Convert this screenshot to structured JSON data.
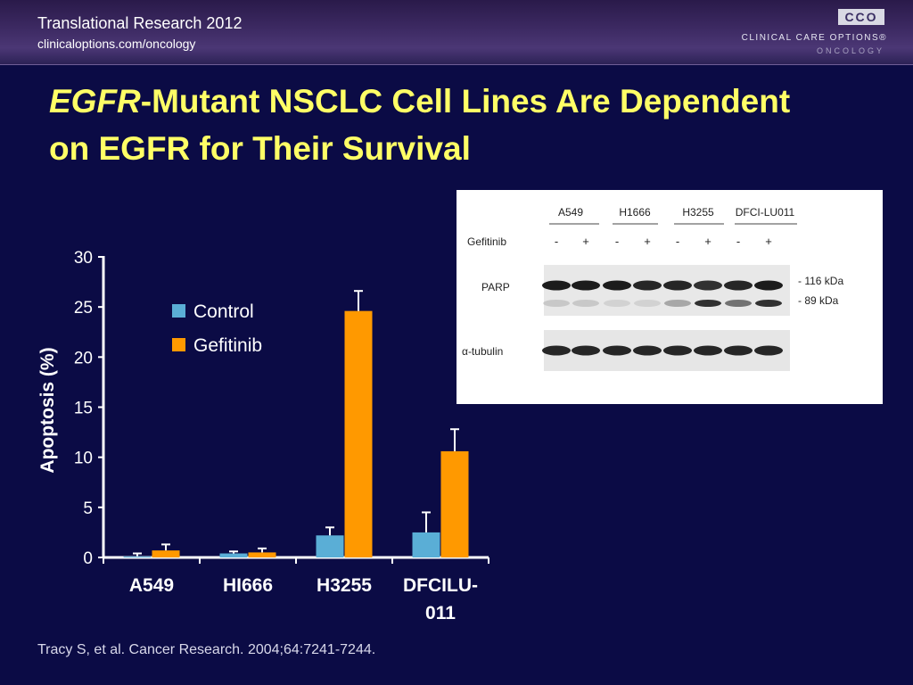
{
  "header": {
    "title": "Translational Research 2012",
    "url": "clinicaloptions.com/oncology",
    "logo_mark": "CCO",
    "logo_line1": "CLINICAL CARE OPTIONS®",
    "logo_line2": "ONCOLOGY"
  },
  "slide": {
    "title_italic": "EGFR",
    "title_rest": "-Mutant NSCLC Cell Lines Are Dependent on EGFR for Their Survival"
  },
  "blot": {
    "cell_lines": [
      "A549",
      "H1666",
      "H3255",
      "DFCI-LU011"
    ],
    "treatment_label": "Gefitinib",
    "treatment_signs": [
      "-",
      "+",
      "-",
      "+",
      "-",
      "+",
      "-",
      "+"
    ],
    "row1_label": "PARP",
    "row2_label": "α-tubulin",
    "marker_116": "- 116 kDa",
    "marker_89": "- 89 kDa"
  },
  "chart_data": {
    "type": "bar",
    "categories": [
      "A549",
      "HI666",
      "H3255",
      "DFCILU-011"
    ],
    "series": [
      {
        "name": "Control",
        "color": "#5aaed6",
        "values": [
          0.1,
          0.4,
          2.2,
          2.5
        ],
        "errors": [
          0.3,
          0.2,
          0.8,
          2.0
        ]
      },
      {
        "name": "Gefitinib",
        "color": "#ff9900",
        "values": [
          0.7,
          0.5,
          24.6,
          10.6
        ],
        "errors": [
          0.6,
          0.4,
          2.0,
          2.2
        ]
      }
    ],
    "ylabel": "Apoptosis (%)",
    "xlabel": "",
    "ylim": [
      0,
      30
    ],
    "yticks": [
      0,
      5,
      10,
      15,
      20,
      25,
      30
    ],
    "legend_position": "top-left"
  },
  "citation": "Tracy S, et al. Cancer Research. 2004;64:7241-7244."
}
